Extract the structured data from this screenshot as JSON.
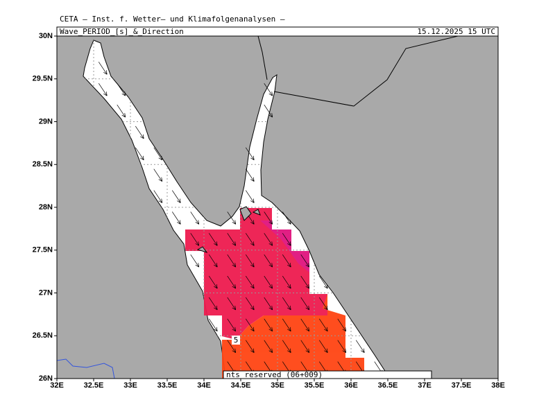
{
  "header": {
    "title": "CETA — Inst. f. Wetter— und Klimafolgenanalysen —",
    "subtitle": "Wave_PERIOD_[s]_&_Direction",
    "date": "15.12.2025 15 UTC"
  },
  "map": {
    "xlim": [
      32,
      38
    ],
    "ylim": [
      26,
      30
    ],
    "xticks": [
      {
        "value": 32,
        "label": "32E"
      },
      {
        "value": 32.5,
        "label": "32.5E"
      },
      {
        "value": 33,
        "label": "33E"
      },
      {
        "value": 33.5,
        "label": "33.5E"
      },
      {
        "value": 34,
        "label": "34E"
      },
      {
        "value": 34.5,
        "label": "34.5E"
      },
      {
        "value": 35,
        "label": "35E"
      },
      {
        "value": 35.5,
        "label": "35.5E"
      },
      {
        "value": 36,
        "label": "36E"
      },
      {
        "value": 36.5,
        "label": "36.5E"
      },
      {
        "value": 37,
        "label": "37E"
      },
      {
        "value": 37.5,
        "label": "37.5E"
      },
      {
        "value": 38,
        "label": "38E"
      }
    ],
    "yticks": [
      {
        "value": 26,
        "label": "26N"
      },
      {
        "value": 26.5,
        "label": "26.5N"
      },
      {
        "value": 27,
        "label": "27N"
      },
      {
        "value": 27.5,
        "label": "27.5N"
      },
      {
        "value": 28,
        "label": "28N"
      },
      {
        "value": 28.5,
        "label": "28.5N"
      },
      {
        "value": 29,
        "label": "29N"
      },
      {
        "value": 29.5,
        "label": "29.5N"
      },
      {
        "value": 30,
        "label": "30N"
      }
    ],
    "contour_label": "5",
    "footer": "nts reserved (06+009)"
  }
}
